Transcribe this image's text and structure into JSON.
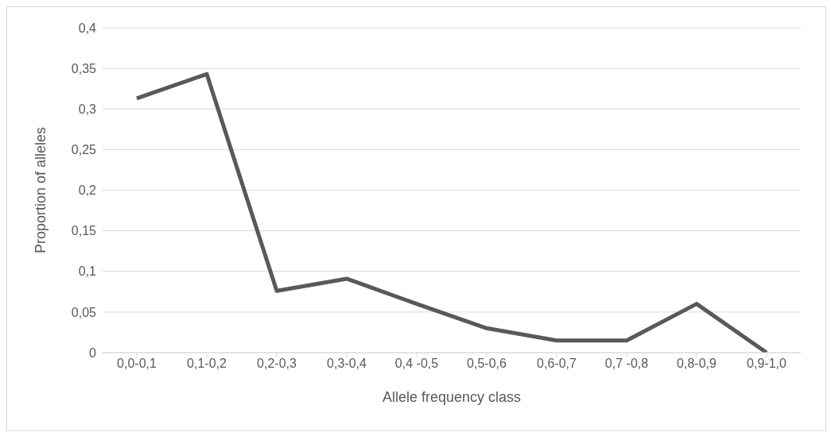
{
  "chart_data": {
    "type": "line",
    "xlabel": "Allele frequency class",
    "ylabel": "Proportion of alleles",
    "categories": [
      "0,0-0,1",
      "0,1-0,2",
      "0,2-0,3",
      "0,3-0,4",
      "0,4 -0,5",
      "0,5-0,6",
      "0,6-0,7",
      "0,7 -0,8",
      "0,8-0,9",
      "0,9-1,0"
    ],
    "series": [
      {
        "color": "#595959",
        "values": [
          0.313,
          0.343,
          0.076,
          0.091,
          0.06,
          0.03,
          0.015,
          0.015,
          0.06,
          0
        ]
      }
    ],
    "ylim": [
      0,
      0.4
    ],
    "yticks": [
      {
        "value": 0,
        "label": "0"
      },
      {
        "value": 0.05,
        "label": "0,05"
      },
      {
        "value": 0.1,
        "label": "0,1"
      },
      {
        "value": 0.15,
        "label": "0,15"
      },
      {
        "value": 0.2,
        "label": "0,2"
      },
      {
        "value": 0.25,
        "label": "0,25"
      },
      {
        "value": 0.3,
        "label": "0,3"
      },
      {
        "value": 0.35,
        "label": "0,35"
      },
      {
        "value": 0.4,
        "label": "0,4"
      }
    ],
    "grid": "y",
    "marker": "none",
    "line_style": "solid",
    "legend": false
  }
}
